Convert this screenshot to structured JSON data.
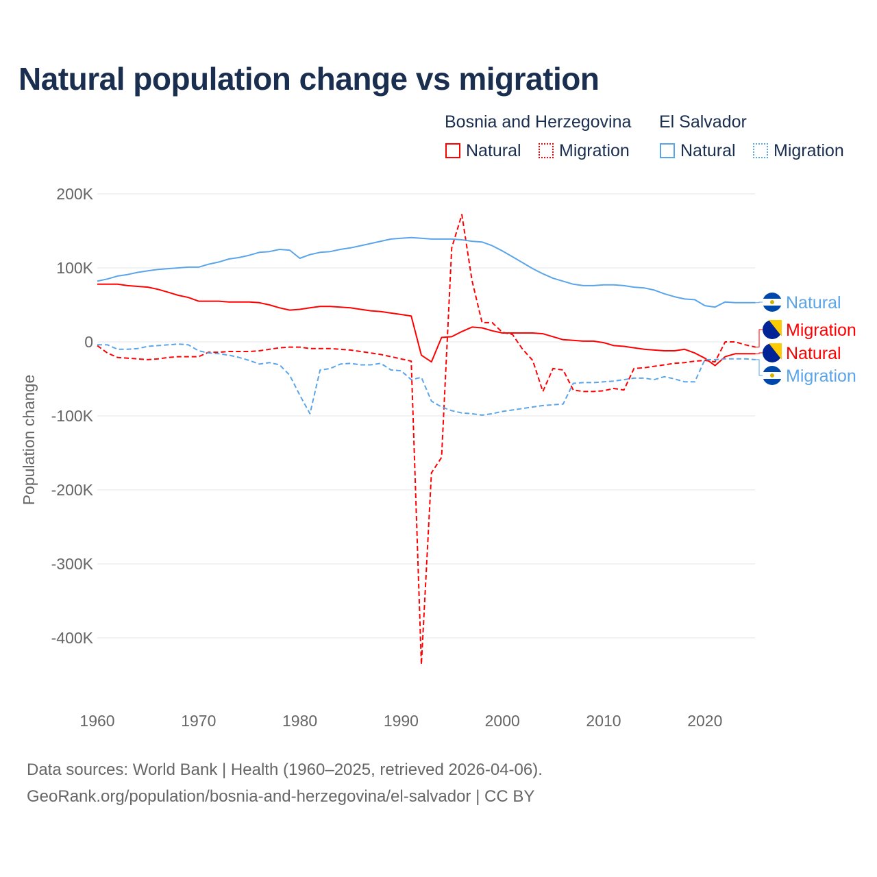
{
  "title": "Natural population change vs migration",
  "legend": {
    "group1": "Bosnia and Herzegovina",
    "group2": "El Salvador",
    "natural": "Natural",
    "migration": "Migration"
  },
  "colors": {
    "bih": "#ff0000",
    "sv": "#5aa5ea"
  },
  "footer": {
    "line1": "Data sources: World Bank | Health (1960–2025, retrieved 2026-04-06).",
    "line2": "GeoRank.org/population/bosnia-and-herzegovina/el-salvador | CC BY"
  },
  "chart_data": {
    "type": "line",
    "title": "Natural population change vs migration",
    "xlabel": "",
    "ylabel": "Population change",
    "xlim": [
      1960,
      2025
    ],
    "ylim": [
      -450000,
      200000
    ],
    "yticks": [
      {
        "v": 200000,
        "label": "200K"
      },
      {
        "v": 100000,
        "label": "100K"
      },
      {
        "v": 0,
        "label": "0"
      },
      {
        "v": -100000,
        "label": "-100K"
      },
      {
        "v": -200000,
        "label": "-200K"
      },
      {
        "v": -300000,
        "label": "-300K"
      },
      {
        "v": -400000,
        "label": "-400K"
      }
    ],
    "xticks": [
      1960,
      1970,
      1980,
      1990,
      2000,
      2010,
      2020
    ],
    "grid": true,
    "series": [
      {
        "name": "Bosnia and Herzegovina Natural",
        "label": "Natural",
        "color": "#ff0000",
        "dash": false,
        "start": 1960,
        "values": [
          78,
          78,
          78,
          76,
          75,
          74,
          71,
          67,
          63,
          60,
          55,
          55,
          55,
          54,
          54,
          54,
          53,
          50,
          46,
          43,
          44,
          46,
          48,
          48,
          47,
          46,
          44,
          42,
          41,
          39,
          37,
          35,
          -18,
          -27,
          6,
          7,
          14,
          20,
          19,
          15,
          12,
          12,
          12,
          12,
          11,
          7,
          3,
          2,
          1,
          1,
          -1,
          -5,
          -6,
          -8,
          -10,
          -11,
          -12,
          -12,
          -10,
          -15,
          -22,
          -32,
          -20,
          -16,
          -16,
          -16
        ]
      },
      {
        "name": "Bosnia and Herzegovina Migration",
        "label": "Migration",
        "color": "#ff0000",
        "dash": true,
        "start": 1960,
        "values": [
          -5,
          -15,
          -21,
          -22,
          -23,
          -24,
          -23,
          -21,
          -20,
          -20,
          -20,
          -14,
          -14,
          -13,
          -13,
          -13,
          -12,
          -10,
          -8,
          -7,
          -7,
          -9,
          -9,
          -9,
          -10,
          -11,
          -13,
          -15,
          -17,
          -20,
          -23,
          -26,
          -436,
          -177,
          -156,
          127,
          172,
          83,
          26,
          26,
          13,
          10,
          -10,
          -25,
          -67,
          -36,
          -38,
          -65,
          -67,
          -67,
          -66,
          -63,
          -65,
          -36,
          -35,
          -33,
          -31,
          -29,
          -28,
          -26,
          -25,
          -27,
          0,
          0,
          -4,
          -7
        ]
      },
      {
        "name": "El Salvador Natural",
        "label": "Natural",
        "color": "#5aa5ea",
        "dash": false,
        "start": 1960,
        "values": [
          82,
          85,
          89,
          91,
          94,
          96,
          98,
          99,
          100,
          101,
          101,
          105,
          108,
          112,
          114,
          117,
          121,
          122,
          125,
          124,
          113,
          118,
          121,
          122,
          125,
          127,
          130,
          133,
          136,
          139,
          140,
          141,
          140,
          139,
          139,
          139,
          138,
          136,
          135,
          130,
          123,
          115,
          107,
          99,
          92,
          86,
          82,
          78,
          76,
          76,
          77,
          77,
          76,
          74,
          73,
          70,
          65,
          61,
          58,
          57,
          49,
          47,
          54,
          53,
          53,
          53
        ]
      },
      {
        "name": "El Salvador Migration",
        "label": "Migration",
        "color": "#5aa5ea",
        "dash": true,
        "start": 1960,
        "values": [
          -4,
          -4,
          -10,
          -10,
          -9,
          -6,
          -5,
          -4,
          -3,
          -4,
          -12,
          -15,
          -16,
          -18,
          -21,
          -25,
          -30,
          -28,
          -31,
          -45,
          -72,
          -97,
          -38,
          -36,
          -30,
          -29,
          -31,
          -31,
          -29,
          -38,
          -39,
          -51,
          -48,
          -80,
          -88,
          -93,
          -96,
          -97,
          -99,
          -97,
          -94,
          -92,
          -90,
          -88,
          -86,
          -85,
          -84,
          -56,
          -55,
          -55,
          -54,
          -53,
          -51,
          -49,
          -49,
          -51,
          -47,
          -50,
          -54,
          -54,
          -24,
          -24,
          -23,
          -23,
          -23,
          -24
        ]
      }
    ],
    "value_unit": "thousands"
  }
}
